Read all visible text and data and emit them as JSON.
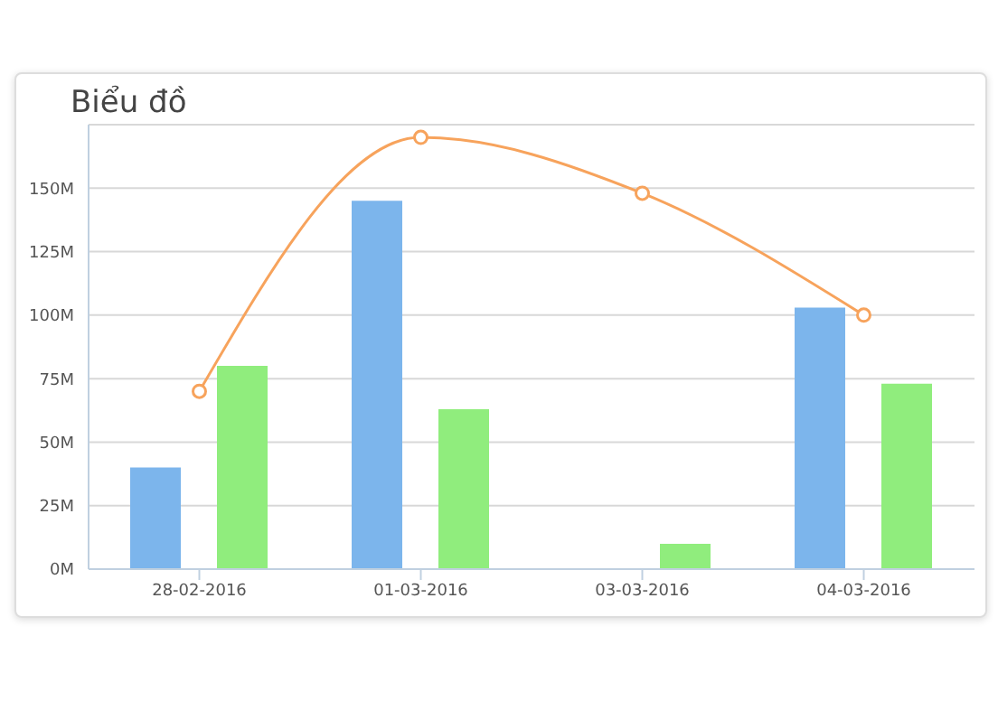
{
  "chart_data": {
    "type": "bar",
    "title": "Biểu đồ",
    "categories": [
      "28-02-2016",
      "01-03-2016",
      "03-03-2016",
      "04-03-2016"
    ],
    "series": [
      {
        "color": "#7cb5ec",
        "values": [
          40,
          145,
          null,
          103
        ]
      },
      {
        "color": "#90ed7d",
        "values": [
          80,
          63,
          10,
          73
        ]
      },
      {
        "type": "line",
        "color": "#f7a35c",
        "values": [
          70,
          170,
          148,
          100
        ],
        "marker": "circle"
      }
    ],
    "ylim": [
      0,
      175
    ],
    "yticks": [
      {
        "value": 0,
        "label": "0M"
      },
      {
        "value": 25,
        "label": "25M"
      },
      {
        "value": 50,
        "label": "50M"
      },
      {
        "value": 75,
        "label": "75M"
      },
      {
        "value": 100,
        "label": "100M"
      },
      {
        "value": 125,
        "label": "125M"
      },
      {
        "value": 150,
        "label": "150M"
      }
    ],
    "grid": "y"
  }
}
